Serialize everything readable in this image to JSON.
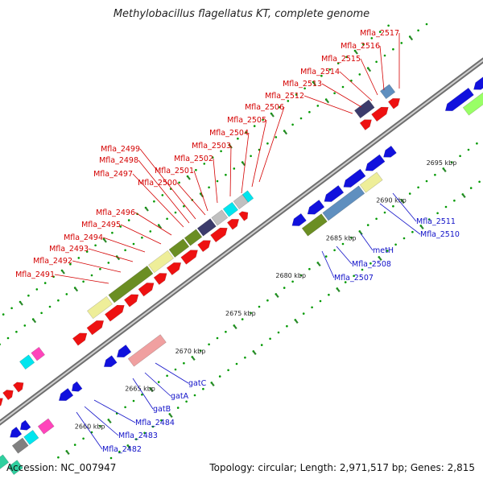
{
  "title": "Methylobacillus flagellatus KT, complete genome",
  "accession": "Accession: NC_007947",
  "topology": "Topology: circular; Length: 2,971,517 bp; Genes: 2,815",
  "colors": {
    "backbone": "#9a9a9a",
    "forward_label": "#d40000",
    "reverse_label": "#1010c8",
    "cds_forward": "#ee1111",
    "cds_reverse": "#1111dd",
    "tick_dot": "#2a8a2a",
    "dot": "#009900"
  },
  "axis": {
    "ticks": [
      "2660 kbp",
      "2665 kbp",
      "2670 kbp",
      "2675 kbp",
      "2680 kbp",
      "2685 kbp",
      "2690 kbp",
      "2695 kbp"
    ]
  },
  "forward_labels": [
    "Mfla_2491",
    "Mfla_2492",
    "Mfla_2493",
    "Mfla_2494",
    "Mfla_2495",
    "Mfla_2496",
    "Mfla_2497",
    "Mfla_2498",
    "Mfla_2499",
    "Mfla_2500",
    "Mfla_2501",
    "Mfla_2502",
    "Mfla_2503",
    "Mfla_2504",
    "Mfla_2505",
    "Mfla_2506",
    "Mfla_2512",
    "Mfla_2513",
    "Mfla_2514",
    "Mfla_2515",
    "Mfla_2516",
    "Mfla_2517"
  ],
  "reverse_labels": [
    "Mfla_2482",
    "Mfla_2483",
    "Mfla_2484",
    "gatB",
    "gatA",
    "gatC",
    "Mfla_2507",
    "Mfla_2508",
    "metH",
    "Mfla_2510",
    "Mfla_2511"
  ],
  "features": {
    "cog_colors": [
      "#6b8e23",
      "#eeee99",
      "#f0a0a0",
      "#3b3b6b",
      "#5f8fbf",
      "#99ff66",
      "#00e5ee",
      "#ff44bb",
      "#2fcf9f",
      "#c0c0c0",
      "#808080"
    ]
  }
}
